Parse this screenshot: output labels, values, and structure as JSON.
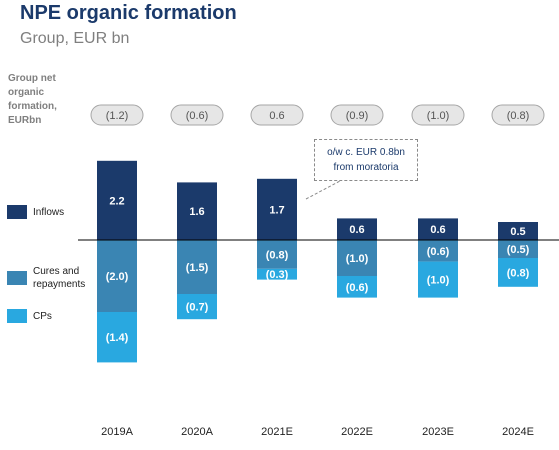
{
  "chart_data": {
    "type": "bar",
    "title": "NPE organic formation",
    "subtitle": "Group, EUR bn",
    "net_label": "Group net organic formation, EURbn",
    "categories": [
      "2019A",
      "2020A",
      "2021E",
      "2022E",
      "2023E",
      "2024E"
    ],
    "series": [
      {
        "name": "Inflows",
        "color": "#1b3a6b",
        "values": [
          2.2,
          1.6,
          1.7,
          0.6,
          0.6,
          0.5
        ]
      },
      {
        "name": "Cures and repayments",
        "color": "#3a85b3",
        "values": [
          -2.0,
          -1.5,
          -0.8,
          -1.0,
          -0.6,
          -0.5
        ]
      },
      {
        "name": "CPs",
        "color": "#29a8e0",
        "values": [
          -1.4,
          -0.7,
          -0.3,
          -0.6,
          -1.0,
          -0.8
        ]
      }
    ],
    "value_labels": {
      "Inflows": [
        "2.2",
        "1.6",
        "1.7",
        "0.6",
        "0.6",
        "0.5"
      ],
      "Cures and repayments": [
        "(2.0)",
        "(1.5)",
        "(0.8)",
        "(1.0)",
        "(0.6)",
        "(0.5)"
      ],
      "CPs": [
        "(1.4)",
        "(0.7)",
        "(0.3)",
        "(0.6)",
        "(1.0)",
        "(0.8)"
      ]
    },
    "net_formation_labels": [
      "(1.2)",
      "(0.6)",
      "0.6",
      "(0.9)",
      "(1.0)",
      "(0.8)"
    ],
    "callout": {
      "line1": "o/w c. EUR 0.8bn",
      "line2": "from moratoria"
    },
    "legend_placement": "left",
    "grid": false
  }
}
